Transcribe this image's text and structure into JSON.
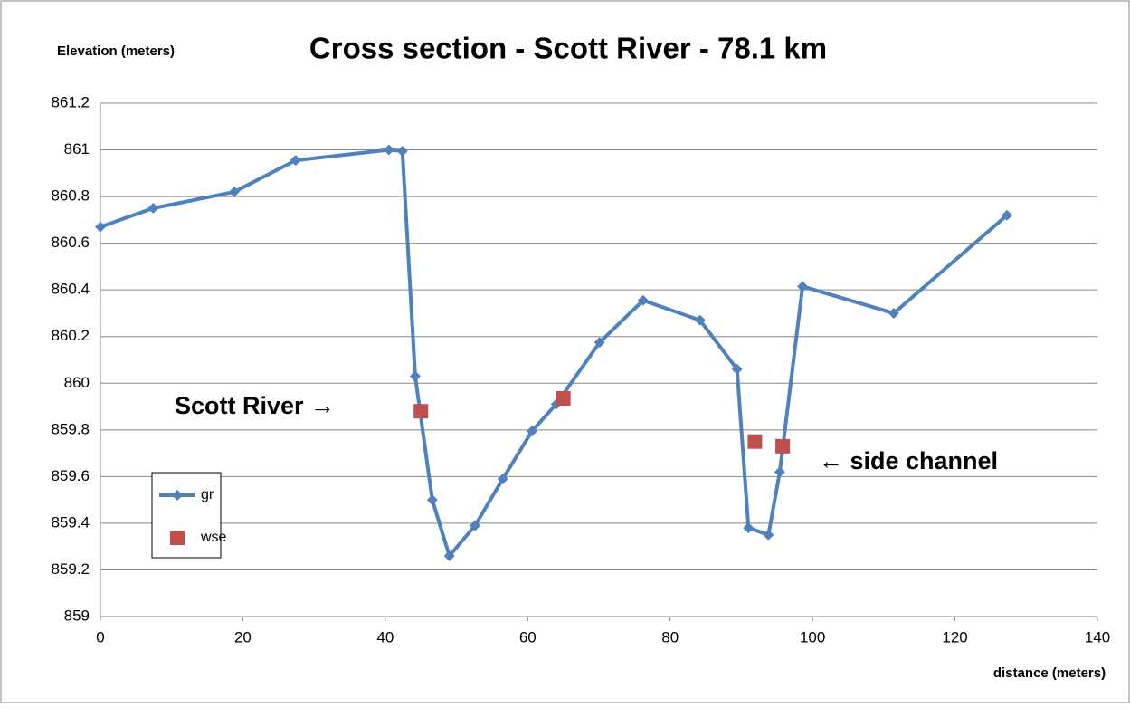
{
  "chart_data": {
    "type": "line",
    "title": "Cross section - Scott River - 78.1 km",
    "y_label": "Elevation (meters)",
    "x_label": "distance (meters)",
    "annotations": [
      "Scott River →",
      "← side channel"
    ],
    "xlim": [
      0,
      140
    ],
    "xticks": [
      0,
      20,
      40,
      60,
      80,
      100,
      120,
      140
    ],
    "ylim": [
      859,
      861.2
    ],
    "yticks": [
      859,
      859.2,
      859.4,
      859.6,
      859.8,
      860,
      860.2,
      860.4,
      860.6,
      860.8,
      861,
      861.2
    ],
    "grid": true,
    "legend": "lower left",
    "series": [
      {
        "name": "gr",
        "color": "#4f81bd",
        "marker": "diamond",
        "line": true,
        "x": [
          0,
          7.4,
          18.8,
          27.4,
          40.5,
          42.4,
          44.2,
          46.6,
          49.0,
          52.6,
          56.5,
          60.6,
          64.0,
          70.1,
          76.2,
          84.2,
          89.4,
          91.0,
          93.8,
          95.4,
          98.6,
          111.4,
          127.3
        ],
        "values": [
          860.67,
          860.75,
          860.82,
          860.955,
          861.0,
          860.995,
          860.03,
          859.5,
          859.26,
          859.39,
          859.59,
          859.795,
          859.91,
          860.175,
          860.355,
          860.27,
          860.06,
          859.38,
          859.35,
          859.62,
          860.415,
          860.3,
          860.72
        ]
      },
      {
        "name": "wse",
        "color": "#c0504d",
        "marker": "square",
        "line": false,
        "x": [
          45.0,
          65.0,
          91.9,
          95.8
        ],
        "values": [
          859.88,
          859.935,
          859.75,
          859.73
        ]
      }
    ]
  }
}
